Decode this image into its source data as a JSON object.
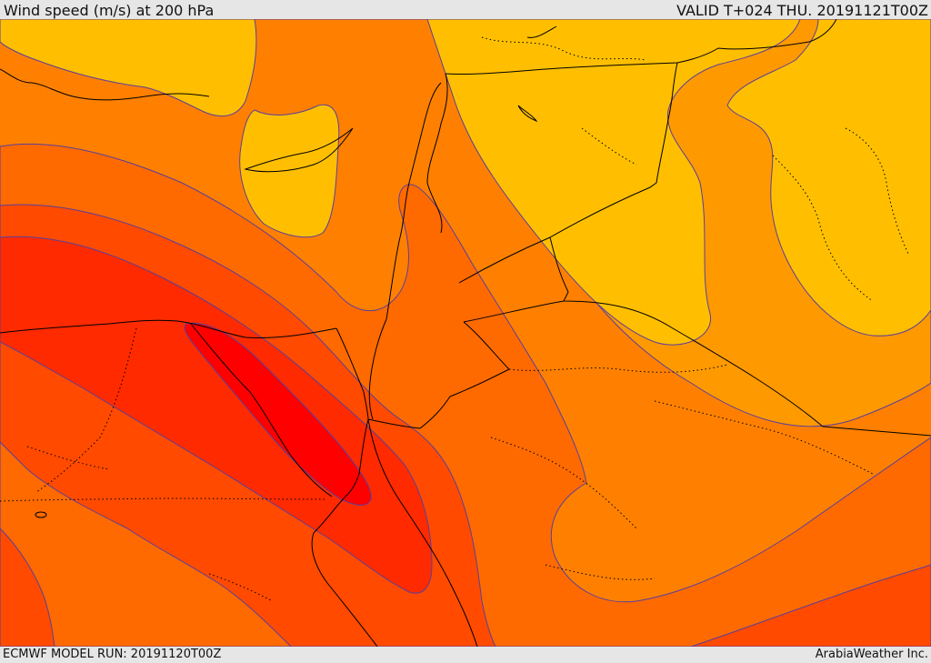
{
  "header": {
    "title": "Wind speed (m/s) at 200 hPa",
    "valid_time": "VALID T+024 THU. 20191121T00Z"
  },
  "footer": {
    "model_run": "ECMWF MODEL RUN: 20191120T00Z",
    "credit": "ArabiaWeather Inc."
  },
  "map": {
    "colors": {
      "band_1": "#ffbf00",
      "band_2": "#ff9900",
      "band_3": "#ff8000",
      "band_4": "#ff6a00",
      "band_5": "#ff4a00",
      "band_6": "#ff2a00",
      "band_7": "#ff0000",
      "contour_line": "#5a3f9a",
      "borders": "#000000"
    }
  }
}
